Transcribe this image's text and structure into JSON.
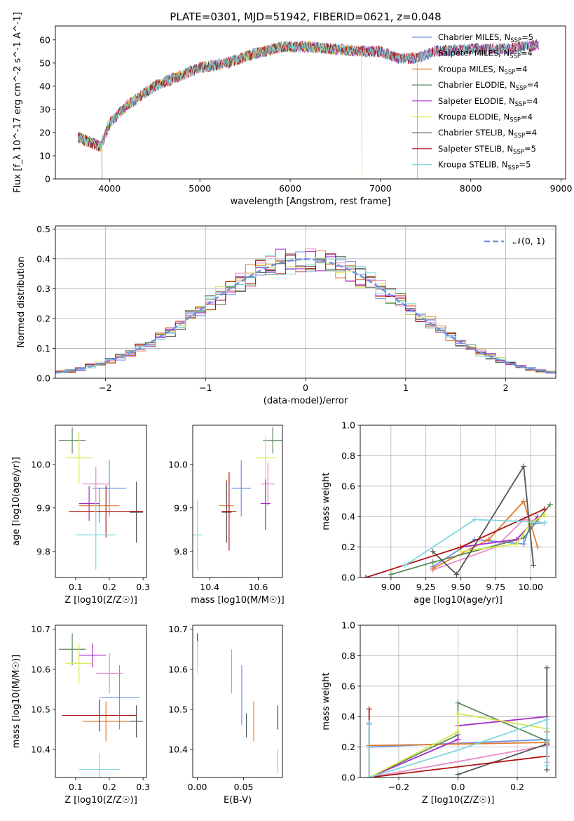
{
  "figure_title": "PLATE=0301, MJD=51942, FIBERID=0621, z=0.048",
  "colors": [
    "#6f91e6",
    "#e88ac6",
    "#e07b2b",
    "#5c8a5c",
    "#a62ac8",
    "#d7e84e",
    "#555555",
    "#b01414",
    "#80d7dd"
  ],
  "chart_data": [
    {
      "type": "line",
      "title": "PLATE=0301, MJD=51942, FIBERID=0621, z=0.048",
      "xlabel": "wavelength [Angstrom, rest frame]",
      "ylabel": "Flux [f_λ 10^-17 erg cm^-2 s^-1 A^-1]",
      "xlim": [
        3400,
        9050
      ],
      "ylim": [
        0,
        66
      ],
      "xticks": [
        "4000",
        "5000",
        "6000",
        "7000",
        "8000",
        "9000"
      ],
      "yticks": [
        "0",
        "10",
        "20",
        "30",
        "40",
        "50",
        "60"
      ],
      "grid": false,
      "legend_position": "right",
      "continuum_x": [
        3650,
        3900,
        4000,
        4200,
        4500,
        5000,
        5300,
        5600,
        5900,
        6200,
        6500,
        6800,
        7000,
        7200,
        7400,
        7600,
        8000,
        8400,
        8750
      ],
      "continuum_y": [
        18,
        14,
        24,
        32,
        40,
        48,
        50,
        54,
        57,
        57,
        56,
        55,
        55,
        52,
        52,
        55,
        56,
        56,
        58
      ],
      "series": [
        {
          "name": "Chabrier MILES, N_SSP=5"
        },
        {
          "name": "Salpeter MILES, N_SSP=4"
        },
        {
          "name": "Kroupa MILES, N_SSP=4"
        },
        {
          "name": "Chabrier ELODIE, N_SSP=4"
        },
        {
          "name": "Salpeter ELODIE, N_SSP=4"
        },
        {
          "name": "Kroupa ELODIE, N_SSP=4"
        },
        {
          "name": "Chabrier STELIB, N_SSP=4"
        },
        {
          "name": "Salpeter STELIB, N_SSP=5"
        },
        {
          "name": "Kroupa STELIB, N_SSP=5"
        }
      ],
      "legend": [
        {
          "prefix": "Chabrier MILES, N",
          "sub": "SSP",
          "suffix": "=5"
        },
        {
          "prefix": "Salpeter MILES, N",
          "sub": "SSP",
          "suffix": "=4"
        },
        {
          "prefix": "Kroupa MILES, N",
          "sub": "SSP",
          "suffix": "=4"
        },
        {
          "prefix": "Chabrier ELODIE, N",
          "sub": "SSP",
          "suffix": "=4"
        },
        {
          "prefix": "Salpeter ELODIE, N",
          "sub": "SSP",
          "suffix": "=4"
        },
        {
          "prefix": "Kroupa ELODIE, N",
          "sub": "SSP",
          "suffix": "=4"
        },
        {
          "prefix": "Chabrier STELIB, N",
          "sub": "SSP",
          "suffix": "=4"
        },
        {
          "prefix": "Salpeter STELIB, N",
          "sub": "SSP",
          "suffix": "=5"
        },
        {
          "prefix": "Kroupa STELIB, N",
          "sub": "SSP",
          "suffix": "=5"
        }
      ],
      "drops": [
        {
          "series": 3,
          "x": 3920
        },
        {
          "series": 5,
          "x": 6790
        },
        {
          "series": 2,
          "x": 7410
        }
      ]
    },
    {
      "type": "histogram",
      "xlabel": "(data-model)/error",
      "ylabel": "Normed distribution",
      "xlim": [
        -2.5,
        2.5
      ],
      "ylim": [
        0,
        0.51
      ],
      "xticks": [
        "−2",
        "−1",
        "0",
        "1",
        "2"
      ],
      "yticks": [
        "0.0",
        "0.1",
        "0.2",
        "0.3",
        "0.4",
        "0.5"
      ],
      "grid": true,
      "bin_width": 0.1,
      "legend_label": "𝒩(0, 1)",
      "reference_curve": "standard normal, mean 0, sigma 1"
    },
    {
      "type": "scatter",
      "xlabel": "Z [log10(Z/Z☉)]",
      "ylabel": "age [log10(age/yr)]",
      "xlim": [
        0.04,
        0.31
      ],
      "ylim": [
        9.74,
        10.09
      ],
      "xticks": [
        "0.1",
        "0.2",
        "0.3"
      ],
      "yticks": [
        "9.8",
        "9.9",
        "10.0"
      ],
      "grid": false,
      "points": [
        {
          "x": 0.2,
          "y": 9.945,
          "xerr": 0.05,
          "yerr": 0.065
        },
        {
          "x": 0.16,
          "y": 9.955,
          "xerr": 0.04,
          "yerr": 0.04
        },
        {
          "x": 0.17,
          "y": 9.905,
          "xerr": 0.06,
          "yerr": 0.04
        },
        {
          "x": 0.09,
          "y": 10.055,
          "xerr": 0.04,
          "yerr": 0.03
        },
        {
          "x": 0.14,
          "y": 9.91,
          "xerr": 0.03,
          "yerr": 0.04
        },
        {
          "x": 0.11,
          "y": 10.015,
          "xerr": 0.04,
          "yerr": 0.06
        },
        {
          "x": 0.28,
          "y": 9.89,
          "xerr": 0.02,
          "yerr": 0.07
        },
        {
          "x": 0.19,
          "y": 9.892,
          "xerr": 0.11,
          "yerr": 0.06
        },
        {
          "x": 0.16,
          "y": 9.838,
          "xerr": 0.06,
          "yerr": 0.08
        }
      ]
    },
    {
      "type": "scatter",
      "xlabel": "mass [log10(M/M☉)]",
      "ylabel": "",
      "xlim": [
        10.33,
        10.7
      ],
      "ylim": [
        9.74,
        10.09
      ],
      "xticks": [
        "10.4",
        "10.6"
      ],
      "yticks": [
        "9.8",
        "9.9",
        "10.0"
      ],
      "grid": false,
      "points": [
        {
          "x": 10.53,
          "y": 9.945,
          "xerr": 0.04,
          "yerr": 0.065
        },
        {
          "x": 10.64,
          "y": 9.955,
          "xerr": 0.03,
          "yerr": 0.05
        },
        {
          "x": 10.47,
          "y": 9.905,
          "xerr": 0.03,
          "yerr": 0.06
        },
        {
          "x": 10.66,
          "y": 10.055,
          "xerr": 0.04,
          "yerr": 0.03
        },
        {
          "x": 10.63,
          "y": 9.91,
          "xerr": 0.02,
          "yerr": 0.06
        },
        {
          "x": 10.63,
          "y": 10.015,
          "xerr": 0.04,
          "yerr": 0.05
        },
        {
          "x": 10.47,
          "y": 9.89,
          "xerr": 0.02,
          "yerr": 0.07
        },
        {
          "x": 10.48,
          "y": 9.892,
          "xerr": 0.03,
          "yerr": 0.09
        },
        {
          "x": 10.35,
          "y": 9.838,
          "xerr": 0.02,
          "yerr": 0.08
        }
      ]
    },
    {
      "type": "line",
      "xlabel": "age [log10(age/yr)]",
      "ylabel": "mass weight",
      "xlim": [
        8.78,
        10.18
      ],
      "ylim": [
        0,
        1.0
      ],
      "xticks": [
        "9.00",
        "9.25",
        "9.50",
        "9.75",
        "10.00"
      ],
      "yticks": [
        "0.0",
        "0.2",
        "0.4",
        "0.6",
        "0.8",
        "1.0"
      ],
      "grid": true,
      "series": [
        {
          "x": [
            9.3,
            9.6,
            9.95,
            10.0,
            10.1
          ],
          "y": [
            0.07,
            0.25,
            0.22,
            0.35,
            0.36
          ]
        },
        {
          "x": [
            9.3,
            9.75,
            9.95,
            10.05
          ],
          "y": [
            0.05,
            0.2,
            0.38,
            0.37
          ]
        },
        {
          "x": [
            9.3,
            9.7,
            9.95,
            10.05
          ],
          "y": [
            0.06,
            0.25,
            0.5,
            0.2
          ]
        },
        {
          "x": [
            9.0,
            9.3,
            9.95,
            10.14
          ],
          "y": [
            0.02,
            0.1,
            0.26,
            0.48
          ]
        },
        {
          "x": [
            9.5,
            9.9,
            10.05
          ],
          "y": [
            0.2,
            0.25,
            0.4
          ]
        },
        {
          "x": [
            9.5,
            9.9,
            10.0,
            10.1
          ],
          "y": [
            0.17,
            0.22,
            0.36,
            0.41
          ]
        },
        {
          "x": [
            9.3,
            9.47,
            9.95,
            10.02
          ],
          "y": [
            0.17,
            0.02,
            0.73,
            0.08
          ]
        },
        {
          "x": [
            8.82,
            9.5,
            10.1
          ],
          "y": [
            0.0,
            0.2,
            0.45
          ]
        },
        {
          "x": [
            9.1,
            9.6,
            9.9,
            10.1
          ],
          "y": [
            0.08,
            0.38,
            0.37,
            0.36
          ]
        }
      ]
    },
    {
      "type": "scatter",
      "xlabel": "Z [log10(Z/Z☉)]",
      "ylabel": "mass [log10(M/M☉)]",
      "xlim": [
        0.04,
        0.31
      ],
      "ylim": [
        10.33,
        10.71
      ],
      "xticks": [
        "0.1",
        "0.2",
        "0.3"
      ],
      "yticks": [
        "10.4",
        "10.5",
        "10.6",
        "10.7"
      ],
      "grid": false,
      "points": [
        {
          "x": 0.23,
          "y": 10.53,
          "xerr": 0.06,
          "yerr": 0.08
        },
        {
          "x": 0.2,
          "y": 10.59,
          "xerr": 0.04,
          "yerr": 0.05
        },
        {
          "x": 0.19,
          "y": 10.47,
          "xerr": 0.07,
          "yerr": 0.05
        },
        {
          "x": 0.09,
          "y": 10.65,
          "xerr": 0.04,
          "yerr": 0.04
        },
        {
          "x": 0.15,
          "y": 10.635,
          "xerr": 0.04,
          "yerr": 0.03
        },
        {
          "x": 0.11,
          "y": 10.615,
          "xerr": 0.04,
          "yerr": 0.05
        },
        {
          "x": 0.28,
          "y": 10.47,
          "xerr": 0.02,
          "yerr": 0.04
        },
        {
          "x": 0.17,
          "y": 10.485,
          "xerr": 0.11,
          "yerr": 0.04
        },
        {
          "x": 0.17,
          "y": 10.35,
          "xerr": 0.06,
          "yerr": 0.04
        }
      ]
    },
    {
      "type": "scatter",
      "xlabel": "E(B-V)",
      "ylabel": "",
      "xlim": [
        -0.005,
        0.092
      ],
      "ylim": [
        10.33,
        10.71
      ],
      "xticks": [
        "0.00",
        "0.05"
      ],
      "yticks": [
        "10.4",
        "10.5",
        "10.6",
        "10.7"
      ],
      "grid": false,
      "points": [
        {
          "x": 0.048,
          "y": 10.535,
          "xerr": 0,
          "yerr": 0.075
        },
        {
          "x": 0.037,
          "y": 10.595,
          "xerr": 0,
          "yerr": 0.055
        },
        {
          "x": 0.061,
          "y": 10.47,
          "xerr": 0,
          "yerr": 0.05
        },
        {
          "x": 0.0,
          "y": 10.65,
          "xerr": 0,
          "yerr": 0.04
        },
        {
          "x": 0.0,
          "y": 10.67,
          "xerr": 0,
          "yerr": 0.02
        },
        {
          "x": 0.0,
          "y": 10.63,
          "xerr": 0,
          "yerr": 0.04
        },
        {
          "x": 0.053,
          "y": 10.46,
          "xerr": 0,
          "yerr": 0.03
        },
        {
          "x": 0.087,
          "y": 10.48,
          "xerr": 0,
          "yerr": 0.03
        },
        {
          "x": 0.087,
          "y": 10.37,
          "xerr": 0,
          "yerr": 0.03
        }
      ]
    },
    {
      "type": "line",
      "xlabel": "Z [log10(Z/Z☉)]",
      "ylabel": "mass weight",
      "xlim": [
        -0.33,
        0.33
      ],
      "ylim": [
        0,
        1.0
      ],
      "xticks": [
        "−0.2",
        "0.0",
        "0.2"
      ],
      "yticks": [
        "0.0",
        "0.2",
        "0.4",
        "0.6",
        "0.8",
        "1.0"
      ],
      "grid": true,
      "series": [
        {
          "x": [
            -0.3,
            -0.3,
            0.3,
            0.3
          ],
          "y": [
            0.35,
            0.2,
            0.25,
            0.24
          ]
        },
        {
          "x": [
            -0.3,
            0.3,
            0.3
          ],
          "y": [
            0.0,
            0.21,
            0.1
          ]
        },
        {
          "x": [
            -0.3,
            0.0,
            0.3,
            0.3
          ],
          "y": [
            0.21,
            0.22,
            0.23,
            0.3
          ]
        },
        {
          "x": [
            -0.3,
            0.0,
            0.0,
            0.3
          ],
          "y": [
            0.0,
            0.28,
            0.49,
            0.24
          ]
        },
        {
          "x": [
            -0.3,
            0.0,
            0.0,
            0.3
          ],
          "y": [
            0.0,
            0.25,
            0.34,
            0.4
          ]
        },
        {
          "x": [
            -0.3,
            0.0,
            0.0,
            0.3
          ],
          "y": [
            0.0,
            0.3,
            0.42,
            0.32
          ]
        },
        {
          "x": [
            0.0,
            0.3,
            0.3,
            0.3
          ],
          "y": [
            0.02,
            0.22,
            0.72,
            0.05
          ]
        },
        {
          "x": [
            -0.3,
            -0.3,
            0.3,
            0.3
          ],
          "y": [
            0.45,
            0.0,
            0.14,
            0.22
          ]
        },
        {
          "x": [
            -0.3,
            -0.3,
            0.0,
            0.3,
            0.3
          ],
          "y": [
            0.36,
            0.0,
            0.18,
            0.38,
            0.08
          ]
        }
      ]
    }
  ]
}
